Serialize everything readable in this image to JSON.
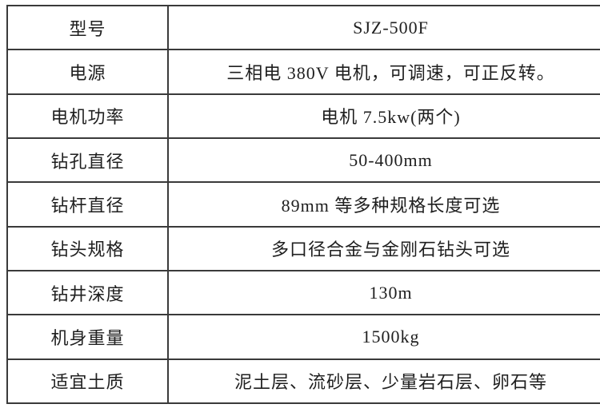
{
  "table": {
    "border_color": "#3a3a3a",
    "text_color": "#1f1f1f",
    "background_color": "#ffffff",
    "rows": [
      {
        "label": "型号",
        "value": "SJZ-500F"
      },
      {
        "label": "电源",
        "value": "三相电 380V 电机，可调速，可正反转。"
      },
      {
        "label": "电机功率",
        "value": "电机 7.5kw(两个)"
      },
      {
        "label": "钻孔直径",
        "value": "50-400mm"
      },
      {
        "label": "钻杆直径",
        "value": "89mm 等多种规格长度可选"
      },
      {
        "label": "钻头规格",
        "value": "多口径合金与金刚石钻头可选"
      },
      {
        "label": "钻井深度",
        "value": "130m"
      },
      {
        "label": "机身重量",
        "value": "1500kg"
      },
      {
        "label": "适宜土质",
        "value": "泥土层、流砂层、少量岩石层、卵石等"
      }
    ]
  }
}
